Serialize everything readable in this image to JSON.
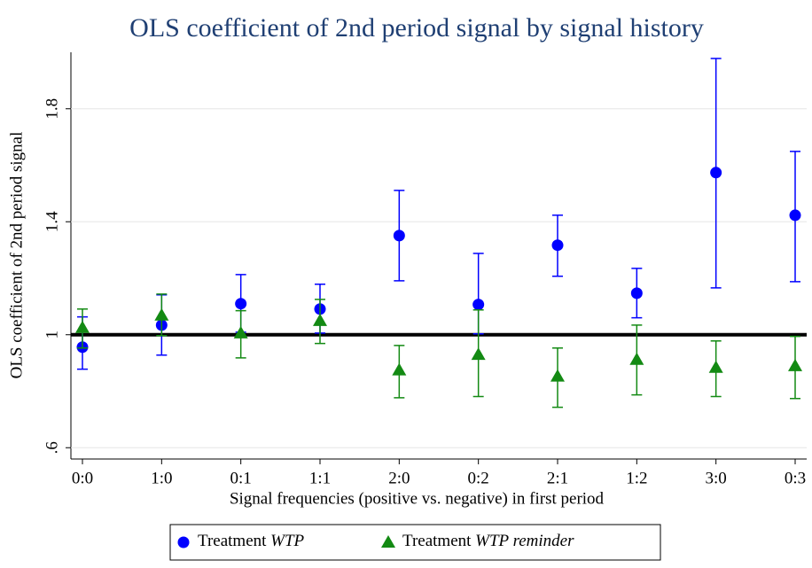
{
  "chart_data": {
    "type": "errorbar",
    "title": "OLS coefficient of 2nd period signal by signal history",
    "x_label": "Signal frequencies (positive vs. negative) in first period",
    "y_label": "OLS coefficient of 2nd period signal",
    "categories": [
      "0:0",
      "1:0",
      "0:1",
      "1:1",
      "2:0",
      "0:2",
      "2:1",
      "1:2",
      "3:0",
      "0:3"
    ],
    "series": [
      {
        "name": "Treatment WTP",
        "color": "#0000ff",
        "marker": "circle",
        "values": [
          0.956,
          1.034,
          1.11,
          1.091,
          1.351,
          1.107,
          1.317,
          1.147,
          1.574,
          1.423
        ],
        "ci_low": [
          0.878,
          0.928,
          1.009,
          1.006,
          1.191,
          1.003,
          1.207,
          1.06,
          1.166,
          1.188
        ],
        "ci_high": [
          1.063,
          1.141,
          1.213,
          1.179,
          1.511,
          1.288,
          1.423,
          1.235,
          1.978,
          1.649
        ]
      },
      {
        "name": "Treatment WTP reminder",
        "color": "#138a13",
        "marker": "triangle",
        "values": [
          1.025,
          1.069,
          1.006,
          1.05,
          0.875,
          0.93,
          0.853,
          0.912,
          0.884,
          0.89
        ],
        "ci_low": [
          0.953,
          0.997,
          0.918,
          0.969,
          0.777,
          0.781,
          0.743,
          0.787,
          0.781,
          0.774
        ],
        "ci_high": [
          1.091,
          1.144,
          1.085,
          1.125,
          0.962,
          1.088,
          0.953,
          1.034,
          0.978,
          0.994
        ]
      }
    ],
    "reference_line": 1,
    "ylim": [
      0.56,
      2.0
    ],
    "yticks": [
      {
        "value": 0.6,
        "label": ".6"
      },
      1,
      1.4,
      1.8
    ],
    "grid": true,
    "legend": "bottom"
  }
}
